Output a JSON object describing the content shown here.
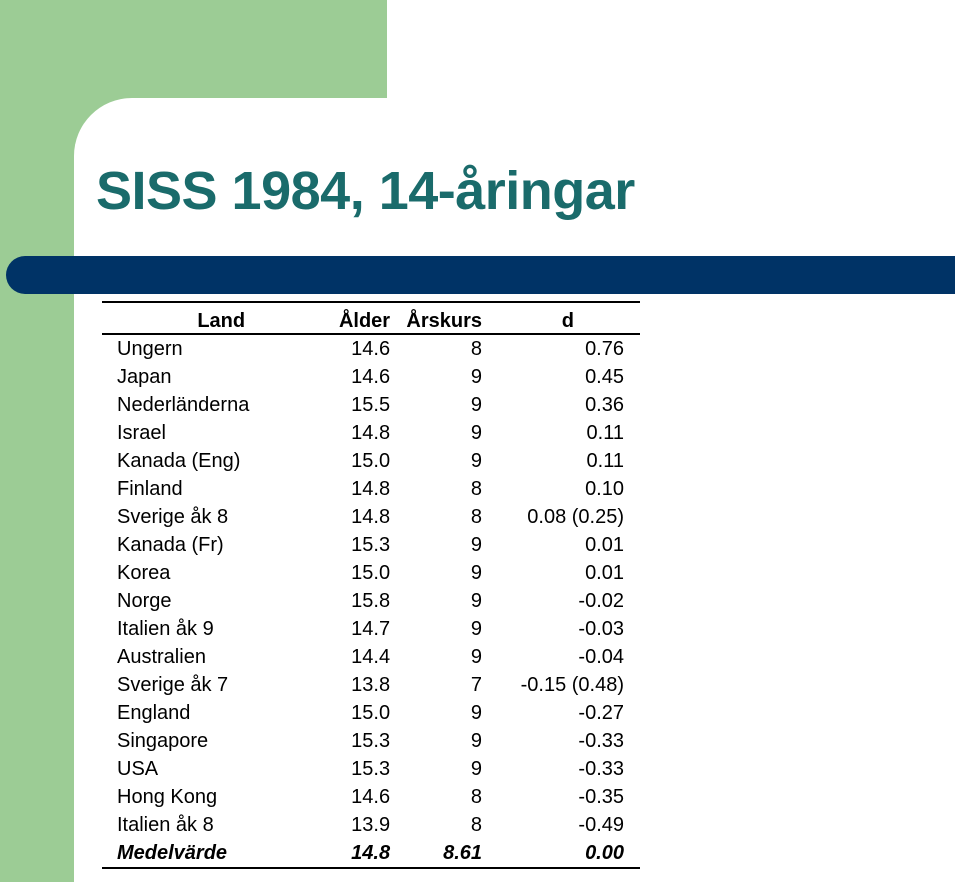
{
  "slide": {
    "title": "SISS 1984, 14-åringar",
    "colors": {
      "green": "#9ccc95",
      "teal_title": "#1a6b6b",
      "bar": "#003366"
    }
  },
  "table": {
    "headers": {
      "land": "Land",
      "alder": "Ålder",
      "arskurs": "Årskurs",
      "d": "d"
    },
    "rows": [
      {
        "land": "Ungern",
        "alder": "14.6",
        "arskurs": "8",
        "d": "0.76"
      },
      {
        "land": "Japan",
        "alder": "14.6",
        "arskurs": "9",
        "d": "0.45"
      },
      {
        "land": "Nederländerna",
        "alder": "15.5",
        "arskurs": "9",
        "d": "0.36"
      },
      {
        "land": "Israel",
        "alder": "14.8",
        "arskurs": "9",
        "d": "0.11"
      },
      {
        "land": "Kanada (Eng)",
        "alder": "15.0",
        "arskurs": "9",
        "d": "0.11"
      },
      {
        "land": "Finland",
        "alder": "14.8",
        "arskurs": "8",
        "d": "0.10"
      },
      {
        "land": "Sverige åk 8",
        "alder": "14.8",
        "arskurs": "8",
        "d": "0.08 (0.25)"
      },
      {
        "land": "Kanada (Fr)",
        "alder": "15.3",
        "arskurs": "9",
        "d": "0.01"
      },
      {
        "land": "Korea",
        "alder": "15.0",
        "arskurs": "9",
        "d": "0.01"
      },
      {
        "land": "Norge",
        "alder": "15.8",
        "arskurs": "9",
        "d": "-0.02"
      },
      {
        "land": "Italien åk 9",
        "alder": "14.7",
        "arskurs": "9",
        "d": "-0.03"
      },
      {
        "land": "Australien",
        "alder": "14.4",
        "arskurs": "9",
        "d": "-0.04"
      },
      {
        "land": "Sverige åk 7",
        "alder": "13.8",
        "arskurs": "7",
        "d": "-0.15 (0.48)"
      },
      {
        "land": "England",
        "alder": "15.0",
        "arskurs": "9",
        "d": "-0.27"
      },
      {
        "land": "Singapore",
        "alder": "15.3",
        "arskurs": "9",
        "d": "-0.33"
      },
      {
        "land": "USA",
        "alder": "15.3",
        "arskurs": "9",
        "d": "-0.33"
      },
      {
        "land": "Hong Kong",
        "alder": "14.6",
        "arskurs": "8",
        "d": "-0.35"
      },
      {
        "land": "Italien åk 8",
        "alder": "13.9",
        "arskurs": "8",
        "d": "-0.49"
      }
    ],
    "footer": {
      "land": "Medelvärde",
      "alder": "14.8",
      "arskurs": "8.61",
      "d": "0.00"
    }
  }
}
